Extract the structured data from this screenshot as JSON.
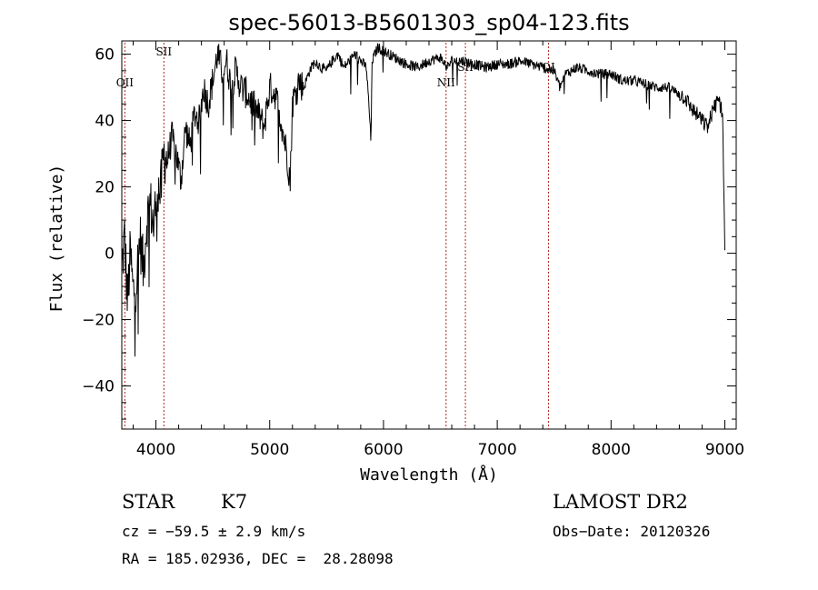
{
  "chart_data": {
    "type": "line",
    "title": "spec-56013-B5601303_sp04-123.fits",
    "xlabel": "Wavelength (Å)",
    "ylabel": "Flux (relative)",
    "xlim": [
      3700,
      9100
    ],
    "ylim": [
      -53,
      64
    ],
    "xticks": [
      4000,
      5000,
      6000,
      7000,
      8000,
      9000
    ],
    "yticks": [
      -40,
      -20,
      0,
      20,
      40,
      60
    ],
    "line_color": "#000000",
    "marker_color": "#b22222",
    "series": [
      {
        "name": "flux",
        "x": [
          3700,
          3725,
          3750,
          3775,
          3800,
          3830,
          3860,
          3890,
          3920,
          3950,
          3980,
          4010,
          4040,
          4070,
          4100,
          4140,
          4180,
          4220,
          4260,
          4300,
          4340,
          4380,
          4420,
          4460,
          4500,
          4540,
          4580,
          4620,
          4660,
          4700,
          4750,
          4800,
          4850,
          4900,
          4950,
          5000,
          5050,
          5100,
          5150,
          5180,
          5200,
          5250,
          5300,
          5350,
          5400,
          5450,
          5500,
          5550,
          5600,
          5650,
          5700,
          5750,
          5800,
          5850,
          5880,
          5890,
          5900,
          5950,
          6000,
          6050,
          6100,
          6150,
          6200,
          6300,
          6400,
          6500,
          6560,
          6600,
          6700,
          6800,
          6900,
          7000,
          7100,
          7200,
          7300,
          7400,
          7500,
          7550,
          7600,
          7700,
          7800,
          7900,
          8000,
          8100,
          8200,
          8300,
          8400,
          8500,
          8600,
          8650,
          8700,
          8750,
          8800,
          8850,
          8900,
          8950,
          8980,
          9000
        ],
        "values": [
          -5,
          5,
          -15,
          0,
          -12,
          -8,
          5,
          -5,
          10,
          15,
          8,
          20,
          18,
          30,
          28,
          35,
          30,
          22,
          38,
          32,
          42,
          40,
          50,
          45,
          52,
          60,
          55,
          58,
          50,
          55,
          50,
          48,
          45,
          42,
          38,
          50,
          48,
          40,
          30,
          22,
          45,
          52,
          50,
          55,
          58,
          56,
          55,
          58,
          60,
          56,
          58,
          60,
          58,
          56,
          40,
          33,
          58,
          62,
          61,
          60,
          59,
          58,
          57,
          56,
          58,
          59,
          56,
          58,
          58,
          57,
          56,
          57,
          57,
          58,
          57,
          56,
          55,
          50,
          54,
          56,
          55,
          54,
          54,
          52,
          52,
          51,
          50,
          50,
          48,
          47,
          44,
          42,
          40,
          38,
          44,
          46,
          42,
          0
        ]
      }
    ],
    "line_markers": [
      {
        "label": "OII",
        "wavelength": 3727
      },
      {
        "label": "SII",
        "wavelength": 4070
      },
      {
        "label": "NII",
        "wavelength": 6550
      },
      {
        "label": "SII",
        "wavelength": 6720
      },
      {
        "label": "OI",
        "wavelength": 7450
      }
    ]
  },
  "info": {
    "object_class": "STAR",
    "subclass": "K7",
    "survey": "LAMOST DR2",
    "cz": "cz = −59.5 ± 2.9 km/s",
    "obs_date": "Obs−Date: 20120326",
    "coords": "RA = 185.02936, DEC =  28.28098"
  }
}
